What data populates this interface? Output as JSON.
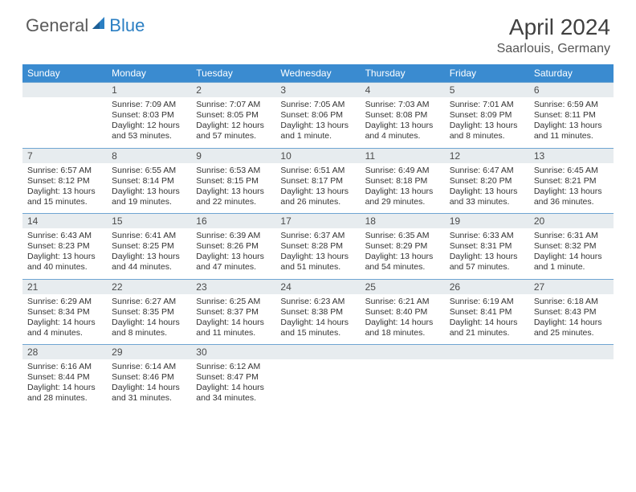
{
  "brand": {
    "part1": "General",
    "part2": "Blue"
  },
  "title": "April 2024",
  "location": "Saarlouis, Germany",
  "colors": {
    "header_bg": "#3a8bd0",
    "daynum_bg": "#e7ecef",
    "week_border": "#6fa5d2",
    "logo_blue": "#2b7fc3",
    "text": "#333333"
  },
  "weekdays": [
    "Sunday",
    "Monday",
    "Tuesday",
    "Wednesday",
    "Thursday",
    "Friday",
    "Saturday"
  ],
  "layout": {
    "columns": 7,
    "rows": 5,
    "first_weekday_index": 1,
    "days_in_month": 30
  },
  "days": [
    {
      "n": "1",
      "sr": "Sunrise: 7:09 AM",
      "ss": "Sunset: 8:03 PM",
      "dl": "Daylight: 12 hours and 53 minutes."
    },
    {
      "n": "2",
      "sr": "Sunrise: 7:07 AM",
      "ss": "Sunset: 8:05 PM",
      "dl": "Daylight: 12 hours and 57 minutes."
    },
    {
      "n": "3",
      "sr": "Sunrise: 7:05 AM",
      "ss": "Sunset: 8:06 PM",
      "dl": "Daylight: 13 hours and 1 minute."
    },
    {
      "n": "4",
      "sr": "Sunrise: 7:03 AM",
      "ss": "Sunset: 8:08 PM",
      "dl": "Daylight: 13 hours and 4 minutes."
    },
    {
      "n": "5",
      "sr": "Sunrise: 7:01 AM",
      "ss": "Sunset: 8:09 PM",
      "dl": "Daylight: 13 hours and 8 minutes."
    },
    {
      "n": "6",
      "sr": "Sunrise: 6:59 AM",
      "ss": "Sunset: 8:11 PM",
      "dl": "Daylight: 13 hours and 11 minutes."
    },
    {
      "n": "7",
      "sr": "Sunrise: 6:57 AM",
      "ss": "Sunset: 8:12 PM",
      "dl": "Daylight: 13 hours and 15 minutes."
    },
    {
      "n": "8",
      "sr": "Sunrise: 6:55 AM",
      "ss": "Sunset: 8:14 PM",
      "dl": "Daylight: 13 hours and 19 minutes."
    },
    {
      "n": "9",
      "sr": "Sunrise: 6:53 AM",
      "ss": "Sunset: 8:15 PM",
      "dl": "Daylight: 13 hours and 22 minutes."
    },
    {
      "n": "10",
      "sr": "Sunrise: 6:51 AM",
      "ss": "Sunset: 8:17 PM",
      "dl": "Daylight: 13 hours and 26 minutes."
    },
    {
      "n": "11",
      "sr": "Sunrise: 6:49 AM",
      "ss": "Sunset: 8:18 PM",
      "dl": "Daylight: 13 hours and 29 minutes."
    },
    {
      "n": "12",
      "sr": "Sunrise: 6:47 AM",
      "ss": "Sunset: 8:20 PM",
      "dl": "Daylight: 13 hours and 33 minutes."
    },
    {
      "n": "13",
      "sr": "Sunrise: 6:45 AM",
      "ss": "Sunset: 8:21 PM",
      "dl": "Daylight: 13 hours and 36 minutes."
    },
    {
      "n": "14",
      "sr": "Sunrise: 6:43 AM",
      "ss": "Sunset: 8:23 PM",
      "dl": "Daylight: 13 hours and 40 minutes."
    },
    {
      "n": "15",
      "sr": "Sunrise: 6:41 AM",
      "ss": "Sunset: 8:25 PM",
      "dl": "Daylight: 13 hours and 44 minutes."
    },
    {
      "n": "16",
      "sr": "Sunrise: 6:39 AM",
      "ss": "Sunset: 8:26 PM",
      "dl": "Daylight: 13 hours and 47 minutes."
    },
    {
      "n": "17",
      "sr": "Sunrise: 6:37 AM",
      "ss": "Sunset: 8:28 PM",
      "dl": "Daylight: 13 hours and 51 minutes."
    },
    {
      "n": "18",
      "sr": "Sunrise: 6:35 AM",
      "ss": "Sunset: 8:29 PM",
      "dl": "Daylight: 13 hours and 54 minutes."
    },
    {
      "n": "19",
      "sr": "Sunrise: 6:33 AM",
      "ss": "Sunset: 8:31 PM",
      "dl": "Daylight: 13 hours and 57 minutes."
    },
    {
      "n": "20",
      "sr": "Sunrise: 6:31 AM",
      "ss": "Sunset: 8:32 PM",
      "dl": "Daylight: 14 hours and 1 minute."
    },
    {
      "n": "21",
      "sr": "Sunrise: 6:29 AM",
      "ss": "Sunset: 8:34 PM",
      "dl": "Daylight: 14 hours and 4 minutes."
    },
    {
      "n": "22",
      "sr": "Sunrise: 6:27 AM",
      "ss": "Sunset: 8:35 PM",
      "dl": "Daylight: 14 hours and 8 minutes."
    },
    {
      "n": "23",
      "sr": "Sunrise: 6:25 AM",
      "ss": "Sunset: 8:37 PM",
      "dl": "Daylight: 14 hours and 11 minutes."
    },
    {
      "n": "24",
      "sr": "Sunrise: 6:23 AM",
      "ss": "Sunset: 8:38 PM",
      "dl": "Daylight: 14 hours and 15 minutes."
    },
    {
      "n": "25",
      "sr": "Sunrise: 6:21 AM",
      "ss": "Sunset: 8:40 PM",
      "dl": "Daylight: 14 hours and 18 minutes."
    },
    {
      "n": "26",
      "sr": "Sunrise: 6:19 AM",
      "ss": "Sunset: 8:41 PM",
      "dl": "Daylight: 14 hours and 21 minutes."
    },
    {
      "n": "27",
      "sr": "Sunrise: 6:18 AM",
      "ss": "Sunset: 8:43 PM",
      "dl": "Daylight: 14 hours and 25 minutes."
    },
    {
      "n": "28",
      "sr": "Sunrise: 6:16 AM",
      "ss": "Sunset: 8:44 PM",
      "dl": "Daylight: 14 hours and 28 minutes."
    },
    {
      "n": "29",
      "sr": "Sunrise: 6:14 AM",
      "ss": "Sunset: 8:46 PM",
      "dl": "Daylight: 14 hours and 31 minutes."
    },
    {
      "n": "30",
      "sr": "Sunrise: 6:12 AM",
      "ss": "Sunset: 8:47 PM",
      "dl": "Daylight: 14 hours and 34 minutes."
    }
  ]
}
